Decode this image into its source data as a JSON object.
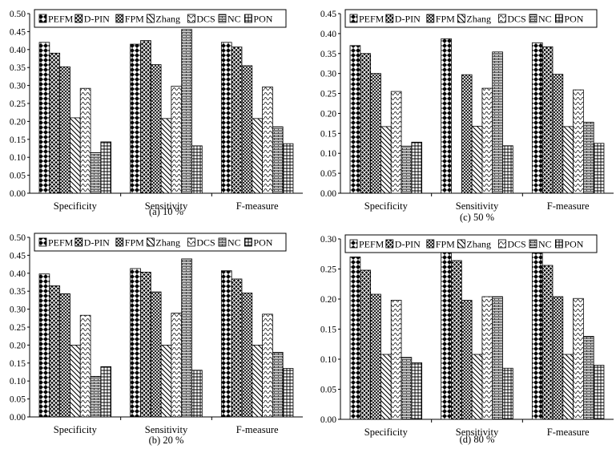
{
  "chart_data": [
    {
      "type": "bar",
      "panel": "a",
      "caption": "(a)  10 %",
      "categories": [
        "Specificity",
        "Sensitivity",
        "F-measure"
      ],
      "ylim": [
        0,
        0.5
      ],
      "yticks": [
        "0.00",
        "0.05",
        "0.10",
        "0.15",
        "0.20",
        "0.25",
        "0.30",
        "0.35",
        "0.40",
        "0.45",
        "0.50"
      ],
      "legend_placement": "top",
      "series": [
        {
          "name": "PEFM",
          "values": [
            0.42,
            0.415,
            0.42
          ]
        },
        {
          "name": "D-PIN",
          "values": [
            0.39,
            0.425,
            0.407
          ]
        },
        {
          "name": "FPM",
          "values": [
            0.352,
            0.358,
            0.355
          ]
        },
        {
          "name": "Zhang",
          "values": [
            0.21,
            0.208,
            0.208
          ]
        },
        {
          "name": "DCS",
          "values": [
            0.292,
            0.298,
            0.296
          ]
        },
        {
          "name": "NC",
          "values": [
            0.113,
            0.456,
            0.185
          ]
        },
        {
          "name": "PON",
          "values": [
            0.143,
            0.132,
            0.138
          ]
        }
      ]
    },
    {
      "type": "bar",
      "panel": "b",
      "caption": "(b)  20 %",
      "categories": [
        "Specificity",
        "Sensitivity",
        "F-measure"
      ],
      "ylim": [
        0,
        0.5
      ],
      "yticks": [
        "0.00",
        "0.05",
        "0.10",
        "0.15",
        "0.20",
        "0.25",
        "0.30",
        "0.35",
        "0.40",
        "0.45",
        "0.50"
      ],
      "legend_placement": "top",
      "series": [
        {
          "name": "PEFM",
          "values": [
            0.398,
            0.413,
            0.407
          ]
        },
        {
          "name": "D-PIN",
          "values": [
            0.365,
            0.403,
            0.384
          ]
        },
        {
          "name": "FPM",
          "values": [
            0.343,
            0.348,
            0.345
          ]
        },
        {
          "name": "Zhang",
          "values": [
            0.2,
            0.2,
            0.2
          ]
        },
        {
          "name": "DCS",
          "values": [
            0.283,
            0.289,
            0.286
          ]
        },
        {
          "name": "NC",
          "values": [
            0.113,
            0.44,
            0.18
          ]
        },
        {
          "name": "PON",
          "values": [
            0.14,
            0.13,
            0.135
          ]
        }
      ]
    },
    {
      "type": "bar",
      "panel": "c",
      "caption": "(c)  50 %",
      "categories": [
        "Specificity",
        "Sensitivity",
        "F-measure"
      ],
      "ylim": [
        0,
        0.45
      ],
      "yticks": [
        "0.00",
        "0.05",
        "0.10",
        "0.15",
        "0.20",
        "0.25",
        "0.30",
        "0.35",
        "0.40",
        "0.45"
      ],
      "legend_placement": "top",
      "series": [
        {
          "name": "PEFM",
          "values": [
            0.37,
            0.387,
            0.377
          ]
        },
        {
          "name": "D-PIN",
          "values": [
            0.35,
            0.0,
            0.367
          ]
        },
        {
          "name": "FPM",
          "values": [
            0.3,
            0.297,
            0.298
          ]
        },
        {
          "name": "Zhang",
          "values": [
            0.167,
            0.168,
            0.167
          ]
        },
        {
          "name": "DCS",
          "values": [
            0.255,
            0.263,
            0.259
          ]
        },
        {
          "name": "NC",
          "values": [
            0.118,
            0.354,
            0.178
          ]
        },
        {
          "name": "PON",
          "values": [
            0.128,
            0.119,
            0.125
          ]
        }
      ]
    },
    {
      "type": "bar",
      "panel": "d",
      "caption": "(d)  80 %",
      "categories": [
        "Specificity",
        "Sensitivity",
        "F-measure"
      ],
      "ylim": [
        0,
        0.3
      ],
      "yticks": [
        "0.00",
        "0.05",
        "0.10",
        "0.15",
        "0.20",
        "0.25",
        "0.30"
      ],
      "legend_placement": "top",
      "series": [
        {
          "name": "PEFM",
          "values": [
            0.27,
            0.283,
            0.276
          ]
        },
        {
          "name": "D-PIN",
          "values": [
            0.248,
            0.264,
            0.256
          ]
        },
        {
          "name": "FPM",
          "values": [
            0.208,
            0.198,
            0.204
          ]
        },
        {
          "name": "Zhang",
          "values": [
            0.108,
            0.108,
            0.108
          ]
        },
        {
          "name": "DCS",
          "values": [
            0.198,
            0.204,
            0.201
          ]
        },
        {
          "name": "NC",
          "values": [
            0.103,
            0.204,
            0.138
          ]
        },
        {
          "name": "PON",
          "values": [
            0.094,
            0.085,
            0.09
          ]
        }
      ]
    }
  ]
}
